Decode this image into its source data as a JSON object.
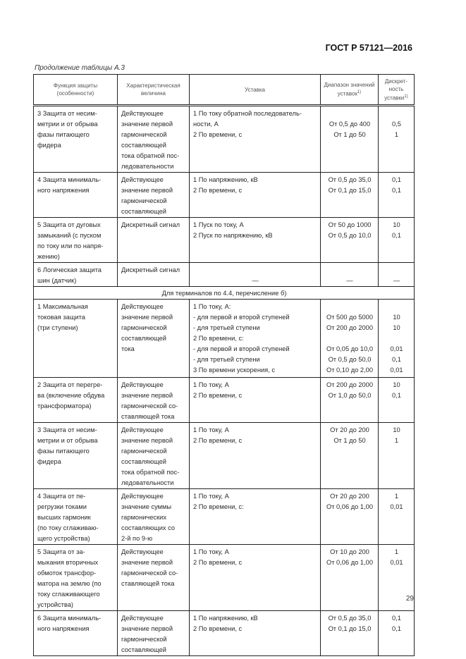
{
  "header": {
    "doc_code": "ГОСТ Р 57121—2016"
  },
  "caption": "Продолжение таблицы А.3",
  "table": {
    "columns": [
      "Функция защиты (особенности)",
      "Характеристическая величина",
      "Уставка",
      "Диапазон значений уставок",
      "Дискрет-ность уставки"
    ],
    "footnote_mark": "1)",
    "rows_a": [
      {
        "func": "3 Защита от несим-\nметрии и от обрыва\nфазы питающего\nфидера",
        "char": "Действующее\nзначение первой\nгармонической\nсоставляющей\nтока обратной пос-\nледовательности",
        "set": [
          "1 По току обратной последователь-",
          "ности, А",
          "2 По времени, с"
        ],
        "range": [
          "",
          "От 0,5 до 400",
          "От 1 до 50"
        ],
        "step": [
          "",
          "0,5",
          "1"
        ]
      },
      {
        "func": "4 Защита минималь-\nного напряжения",
        "char": "Действующее\nзначение первой\nгармонической\nсоставляющей",
        "set": [
          "1 По напряжению, кВ",
          "2 По времени, с"
        ],
        "range": [
          "От 0,5 до 35,0",
          "От 0,1 до 15,0"
        ],
        "step": [
          "0,1",
          "0,1"
        ]
      },
      {
        "func": "5 Защита от дуговых\nзамыканий (с пуском\nпо току или по напря-\nжению)",
        "char": "Дискретный сигнал",
        "set": [
          "1 Пуск по току, А",
          "2 Пуск по напряжению, кВ"
        ],
        "range": [
          "От 50 до 1000",
          "От 0,5 до 10,0"
        ],
        "step": [
          "10",
          "0,1"
        ]
      },
      {
        "func": "6 Логическая защита\nшин (датчик)",
        "char": "Дискретный сигнал",
        "set": [
          "",
          "—"
        ],
        "range": [
          "",
          "—"
        ],
        "step": [
          "",
          "—"
        ]
      }
    ],
    "section": "Для терминалов по 4.4, перечисление б)",
    "rows_b": [
      {
        "func": "1 Максимальная\nтоковая защита\n(три ступени)",
        "char": "Действующее\nзначение первой\nгармонической\nсоставляющей\nтока",
        "set": [
          "1 По току, А:",
          "-  для первой и второй ступеней",
          "-  для третьей ступени",
          "2 По времени, с:",
          "-  для первой и второй ступеней",
          "-  для третьей ступени",
          "3 По времени ускорения, с"
        ],
        "range": [
          "",
          "От 500 до 5000",
          "От 200 до 2000",
          "",
          "От 0,05 до 10,0",
          "От 0,5 до 50,0",
          "От 0,10 до 2,00"
        ],
        "step": [
          "",
          "10",
          "10",
          "",
          "0,01",
          "0,1",
          "0,01"
        ]
      },
      {
        "func": "2 Защита от перегре-\nва (включение обдува\nтрансформатора)",
        "char": "Действующее\nзначение первой\nгармонической со-\nставляющей тока",
        "set": [
          "1 По току, А",
          "2 По времени, с"
        ],
        "range": [
          "От 200 до 2000",
          "От 1,0 до 50,0"
        ],
        "step": [
          "10",
          "0,1"
        ]
      },
      {
        "func": "3 Защита от несим-\nметрии и от обрыва\nфазы питающего\nфидера",
        "char": "Действующее\nзначение первой\nгармонической\nсоставляющей\nтока обратной пос-\nледовательности",
        "set": [
          "1 По току, А",
          "2 По времени, с"
        ],
        "range": [
          "От 20 до 200",
          "От 1 до 50"
        ],
        "step": [
          "10",
          "1"
        ]
      },
      {
        "func": "4 Защита от пе-\nрегрузки токами\nвысших гармоник\n(по току сглаживаю-\nщего устройства)",
        "char": "Действующее\nзначение суммы\nгармонических\nсоставляющих со\n2-й по 9-ю",
        "set": [
          "1 По току, А",
          "2 По времени, с:"
        ],
        "range": [
          "От 20 до 200",
          "От 0,06 до 1,00"
        ],
        "step": [
          "1",
          "0,01"
        ]
      },
      {
        "func": "5 Защита от за-\nмыкания вторичных\nобмоток трансфор-\nматора на землю (по\nтоку сглаживающего\nустройства)",
        "char": "Действующее\nзначение первой\nгармонической со-\nставляющей тока",
        "set": [
          "1 По току, А",
          "2 По времени, с"
        ],
        "range": [
          "От 10 до 200",
          "От 0,06 до 1,00"
        ],
        "step": [
          "1",
          "0,01"
        ]
      },
      {
        "func": "6 Защита минималь-\nного напряжения",
        "char": "Действующее\nзначение первой\nгармонической\nсоставляющей",
        "set": [
          "1 По напряжению, кВ",
          "2 По времени, с"
        ],
        "range": [
          "От 0,5 до 35,0",
          "От 0,1 до 15,0"
        ],
        "step": [
          "0,1",
          "0,1"
        ]
      }
    ]
  },
  "page_number": "29"
}
